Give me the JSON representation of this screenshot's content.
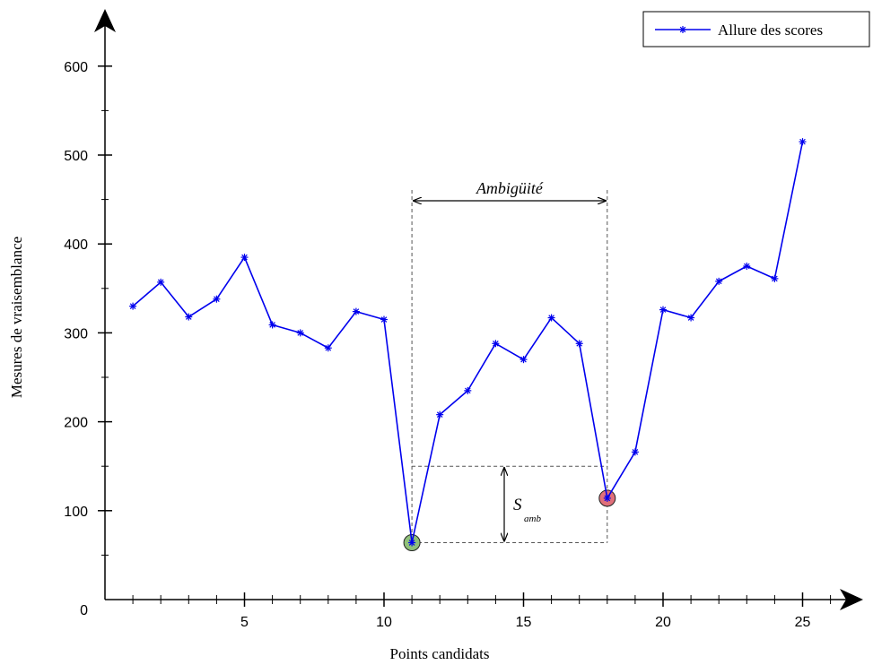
{
  "chart_data": {
    "type": "line",
    "xlabel": "Points candidats",
    "ylabel": "Mesures de vraisemblance",
    "xlim": [
      0,
      27
    ],
    "ylim": [
      0,
      650
    ],
    "xticks": [
      5,
      10,
      15,
      20,
      25
    ],
    "yticks": [
      0,
      100,
      200,
      300,
      400,
      500,
      600
    ],
    "grid": false,
    "legend_position": "top-right",
    "series": [
      {
        "name": "Allure des scores",
        "color": "#0000ee",
        "marker": "star",
        "x": [
          1,
          2,
          3,
          4,
          5,
          6,
          7,
          8,
          9,
          10,
          11,
          12,
          13,
          14,
          15,
          16,
          17,
          18,
          19,
          20,
          21,
          22,
          23,
          24,
          25
        ],
        "y": [
          330,
          357,
          318,
          338,
          385,
          309,
          300,
          283,
          324,
          315,
          64,
          208,
          235,
          288,
          270,
          317,
          288,
          114,
          166,
          326,
          317,
          358,
          375,
          361,
          515
        ]
      }
    ],
    "highlights": [
      {
        "x": 11,
        "y": 64,
        "color": "#8fc07a"
      },
      {
        "x": 18,
        "y": 114,
        "color": "#e0707a"
      }
    ],
    "annotations": {
      "ambiguity_label": "Ambigüité",
      "ambiguity_x_range": [
        11,
        18
      ],
      "s_amb_main": "S",
      "s_amb_sub": "amb",
      "s_amb_y_range": [
        64,
        150
      ]
    }
  }
}
